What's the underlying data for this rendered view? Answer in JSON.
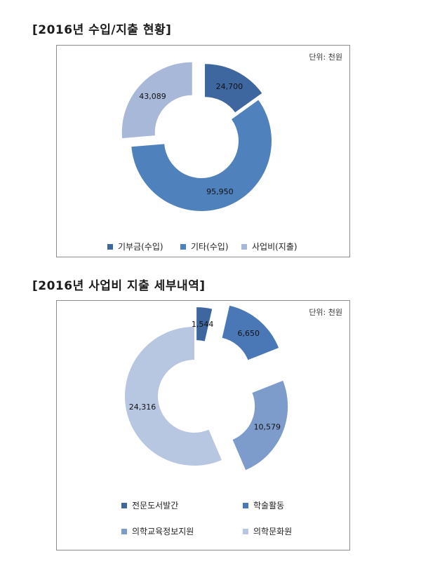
{
  "headings": {
    "first": "[2016년 수입/지출 현황]",
    "second": "[2016년 사업비 지출 세부내역]"
  },
  "chart_data": [
    {
      "type": "pie",
      "unit_label": "단위: 천원",
      "categories": [
        "기부금(수입)",
        "기타(수입)",
        "사업비(지출)"
      ],
      "values": [
        24700,
        95950,
        43089
      ],
      "data_labels": [
        "24,700",
        "95,950",
        "43,089"
      ],
      "colors": [
        "#3d679e",
        "#4f81bd",
        "#a8b8d8"
      ],
      "legend_position": "bottom"
    },
    {
      "type": "pie",
      "unit_label": "단위: 천원",
      "categories": [
        "전문도서발간",
        "학술활동",
        "의학교육정보지원",
        "의학문화원"
      ],
      "values": [
        1544,
        6650,
        10579,
        24316
      ],
      "data_labels": [
        "1,544",
        "6,650",
        "10,579",
        "24,316"
      ],
      "colors": [
        "#3d679e",
        "#4a78b6",
        "#7e9ccb",
        "#b7c6e1"
      ],
      "legend_position": "bottom"
    }
  ]
}
